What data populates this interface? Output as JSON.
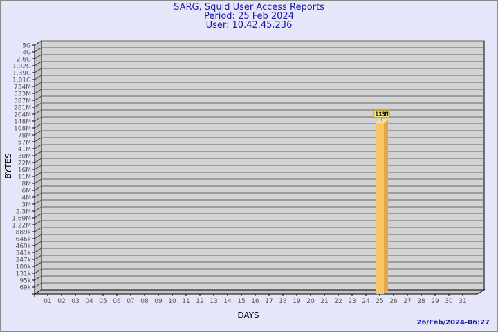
{
  "header": {
    "title": "SARG, Squid User Access Reports",
    "period": "Period: 25 Feb 2024",
    "user": "User: 10.42.45.236"
  },
  "footer": {
    "timestamp": "26/Feb/2024-06:27"
  },
  "chart_data": {
    "type": "bar",
    "title": "SARG, Squid User Access Reports",
    "xlabel": "DAYS",
    "ylabel": "BYTES",
    "y_scale": "log",
    "grid": true,
    "y_tick_labels": [
      "5G",
      "4G",
      "2,6G",
      "1,92G",
      "1,39G",
      "1,01G",
      "734M",
      "533M",
      "387M",
      "281M",
      "204M",
      "148M",
      "108M",
      "78M",
      "57M",
      "41M",
      "30M",
      "22M",
      "16M",
      "11M",
      "8M",
      "6M",
      "4M",
      "3M",
      "2,3M",
      "1,69M",
      "1,22M",
      "889k",
      "646k",
      "469k",
      "341k",
      "247k",
      "180k",
      "131k",
      "95k",
      "69k"
    ],
    "categories": [
      "01",
      "02",
      "03",
      "04",
      "05",
      "06",
      "07",
      "08",
      "09",
      "10",
      "11",
      "12",
      "13",
      "14",
      "15",
      "16",
      "17",
      "18",
      "19",
      "20",
      "21",
      "22",
      "23",
      "24",
      "25",
      "26",
      "27",
      "28",
      "29",
      "30",
      "31"
    ],
    "series": [
      {
        "values": [
          0,
          0,
          0,
          0,
          0,
          0,
          0,
          0,
          0,
          0,
          0,
          0,
          0,
          0,
          0,
          0,
          0,
          0,
          0,
          0,
          0,
          0,
          0,
          0,
          133000000,
          0,
          0,
          0,
          0,
          0,
          0
        ],
        "data_labels": {
          "25": "133M"
        }
      }
    ],
    "colors": {
      "bar": "#fcc468",
      "bar_side": "#e0a848",
      "bar_top": "#ffe090",
      "plot_bg": "#d3d3d3",
      "label_bg": "#ffef80"
    }
  }
}
